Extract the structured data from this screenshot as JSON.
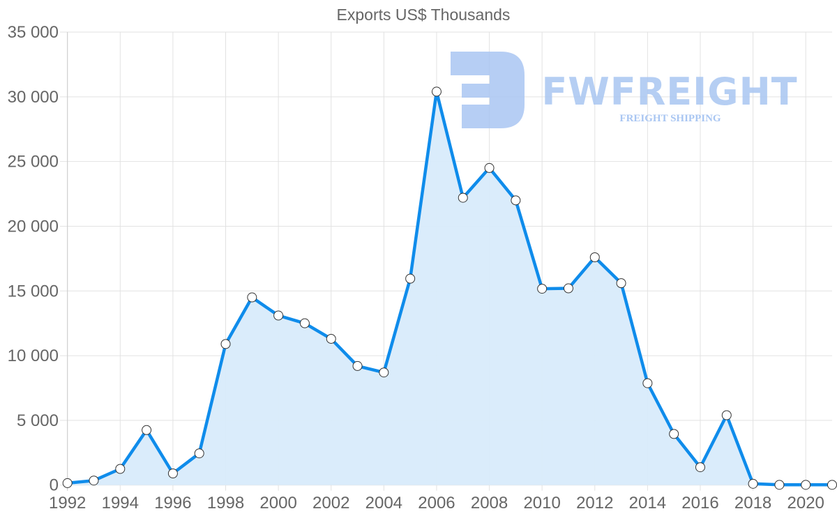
{
  "chart_data": {
    "type": "area",
    "title": "Exports US$ Thousands",
    "xlabel": "",
    "ylabel": "",
    "categories": [
      1992,
      1993,
      1994,
      1995,
      1996,
      1997,
      1998,
      1999,
      2000,
      2001,
      2002,
      2003,
      2004,
      2005,
      2006,
      2007,
      2008,
      2009,
      2010,
      2011,
      2012,
      2013,
      2014,
      2015,
      2016,
      2017,
      2018,
      2019,
      2020,
      2021
    ],
    "series": [
      {
        "name": "Exports US$ Thousands",
        "values": [
          150,
          350,
          1250,
          4250,
          900,
          2450,
          10900,
          14500,
          13100,
          12500,
          11300,
          9200,
          8700,
          15950,
          30400,
          22200,
          24500,
          22000,
          15170,
          15200,
          17600,
          15600,
          7870,
          3950,
          1380,
          5400,
          100,
          20,
          20,
          20
        ]
      }
    ],
    "ylim": [
      0,
      35000
    ],
    "yticks": [
      0,
      5000,
      10000,
      15000,
      20000,
      25000,
      30000,
      35000
    ],
    "ytick_labels": [
      "0",
      "5 000",
      "10 000",
      "15 000",
      "20 000",
      "25 000",
      "30 000",
      "35 000"
    ],
    "xtick_labels": [
      "1992",
      "1994",
      "1996",
      "1998",
      "2000",
      "2002",
      "2004",
      "2006",
      "2008",
      "2010",
      "2012",
      "2014",
      "2016",
      "2018",
      "2020"
    ],
    "grid": true,
    "legend": "none",
    "colors": {
      "line": "#0f8ceb",
      "fill": "#d8ebfb",
      "grid": "#e2e2e2",
      "point_fill": "#ffffff",
      "point_stroke": "#333333"
    }
  },
  "watermark": {
    "brand": "FWFREIGHT",
    "tagline": "FREIGHT SHIPPING",
    "color": "#a9c6f2"
  }
}
